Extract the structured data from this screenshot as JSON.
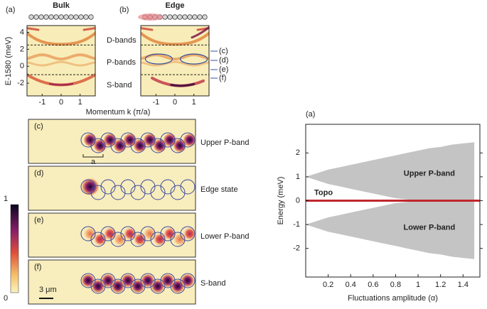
{
  "chart_data": [
    {
      "type": "heatmap",
      "panel": "(a)",
      "title": "Bulk",
      "ylabel": "E-1580 (meV)",
      "xlabel": "Momentum k (π/a)",
      "xlim": [
        -1.8,
        1.8
      ],
      "xticks": [
        -1,
        0,
        1
      ],
      "ylim": [
        -3.5,
        4.8
      ],
      "yticks": [
        -2,
        0,
        2,
        4
      ],
      "dashed_lines": [
        2.5,
        -1
      ],
      "band_labels": [
        "D-bands",
        "P-bands",
        "S-band"
      ]
    },
    {
      "type": "heatmap",
      "panel": "(b)",
      "title": "Edge",
      "xlim": [
        -1.8,
        1.8
      ],
      "xticks": [
        -1,
        0,
        1
      ],
      "ylim": [
        -3.5,
        4.8
      ],
      "dashed_lines": [
        2.5,
        -1
      ],
      "state_labels": [
        "(c)",
        "(d)",
        "(e)",
        "(f)"
      ]
    },
    {
      "type": "area",
      "panel": "(a)",
      "ylabel": "Energy (meV)",
      "xlabel": "Fluctuations amplitude (α)",
      "x": [
        0,
        0.1,
        0.2,
        0.3,
        0.4,
        0.5,
        0.6,
        0.7,
        0.8,
        0.9,
        1.0,
        1.1,
        1.2,
        1.3,
        1.4,
        1.5
      ],
      "series": [
        {
          "name": "Upper P-band",
          "color": "#c4c4c4",
          "values": [
            1,
            1.15,
            1.3,
            1.4,
            1.5,
            1.6,
            1.7,
            1.8,
            1.9,
            2.0,
            2.1,
            2.2,
            2.25,
            2.35,
            2.4,
            2.45
          ],
          "base": [
            1,
            0.85,
            0.7,
            0.6,
            0.5,
            0.4,
            0.3,
            0.2,
            0.1,
            0.05,
            0.02,
            0.02,
            0.02,
            0.02,
            0.02,
            0.02
          ]
        },
        {
          "name": "Lower P-band",
          "color": "#c4c4c4",
          "values": [
            -1,
            -1.15,
            -1.3,
            -1.4,
            -1.5,
            -1.6,
            -1.7,
            -1.8,
            -1.9,
            -2.0,
            -2.1,
            -2.2,
            -2.25,
            -2.35,
            -2.4,
            -2.45
          ],
          "base": [
            -1,
            -0.85,
            -0.7,
            -0.6,
            -0.5,
            -0.4,
            -0.3,
            -0.2,
            -0.1,
            -0.05,
            -0.02,
            -0.02,
            -0.02,
            -0.02,
            -0.02,
            -0.02
          ]
        }
      ],
      "topo": {
        "label": "Topo",
        "value": 0,
        "color": "#c0272d"
      },
      "xlim": [
        0,
        1.55
      ],
      "xticks": [
        0.2,
        0.4,
        0.6,
        0.8,
        1,
        1.2,
        1.4
      ],
      "ylim": [
        -3.2,
        3.2
      ],
      "yticks": [
        -2,
        -1,
        0,
        1,
        2
      ]
    }
  ],
  "images": [
    {
      "panel": "(c)",
      "label": "Upper P-band"
    },
    {
      "panel": "(d)",
      "label": "Edge state"
    },
    {
      "panel": "(e)",
      "label": "Lower P-band"
    },
    {
      "panel": "(f)",
      "label": "S-band"
    }
  ],
  "lattice_label": "a",
  "scale_bar": "3 μm",
  "colorbar": {
    "ticks": [
      0,
      1
    ]
  }
}
